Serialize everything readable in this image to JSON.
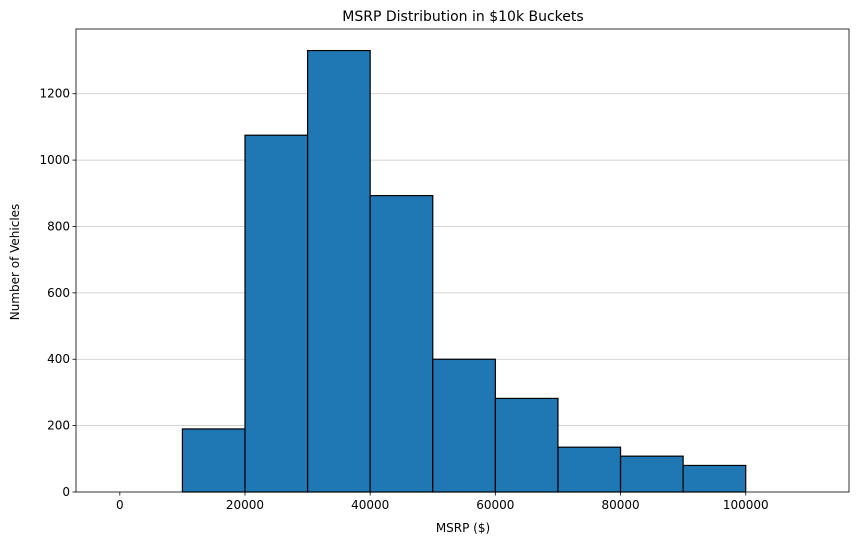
{
  "chart_data": {
    "type": "bar",
    "title": "MSRP Distribution in $10k Buckets",
    "xlabel": "MSRP ($)",
    "ylabel": "Number of Vehicles",
    "bin_edges": [
      0,
      10000,
      20000,
      30000,
      40000,
      50000,
      60000,
      70000,
      80000,
      90000,
      100000,
      110000
    ],
    "values": [
      0,
      190,
      1075,
      1330,
      893,
      400,
      282,
      135,
      108,
      80,
      0
    ],
    "xlim": [
      -7000,
      116500
    ],
    "ylim": [
      0,
      1395
    ],
    "xticks": [
      0,
      20000,
      40000,
      60000,
      80000,
      100000
    ],
    "yticks": [
      0,
      200,
      400,
      600,
      800,
      1000,
      1200
    ],
    "grid": "y",
    "bar_color": "#1f77b4",
    "edge_color": "#000000",
    "grid_color": "#c4c4c4"
  }
}
